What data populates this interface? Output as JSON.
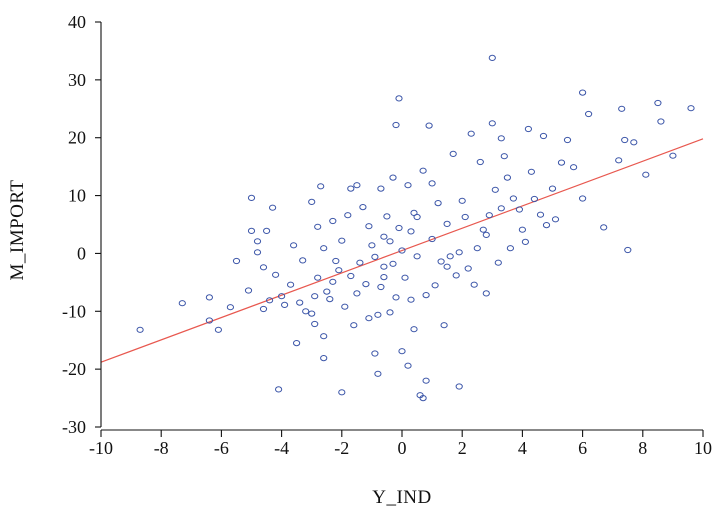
{
  "colors": {
    "points": "#3b55a8",
    "fit_line": "#e8584f",
    "axis": "#111111",
    "background": "#ffffff"
  },
  "chart_data": {
    "type": "scatter",
    "title": "",
    "xlabel": "Y_IND",
    "ylabel": "M_IMPORT",
    "xlim": [
      -10,
      10
    ],
    "ylim": [
      -30,
      40
    ],
    "xticks": [
      -10,
      -8,
      -6,
      -4,
      -2,
      0,
      2,
      4,
      6,
      8,
      10
    ],
    "yticks": [
      -30,
      -20,
      -10,
      0,
      10,
      20,
      30,
      40
    ],
    "xtick_labels": [
      "-10",
      "-8",
      "-6",
      "-4",
      "-2",
      "0",
      "2",
      "4",
      "6",
      "8",
      "10"
    ],
    "ytick_labels": [
      "-30",
      "-20",
      "-10",
      "0",
      "10",
      "20",
      "30",
      "40"
    ],
    "grid": false,
    "legend": "none",
    "fit_line": {
      "x": [
        -10,
        10
      ],
      "y": [
        -18.8,
        19.8
      ]
    },
    "points": [
      [
        -8.7,
        -13.2
      ],
      [
        -7.3,
        -8.6
      ],
      [
        -6.4,
        -7.6
      ],
      [
        -6.4,
        -11.6
      ],
      [
        -6.1,
        -13.2
      ],
      [
        -5.7,
        -9.3
      ],
      [
        -5.5,
        -1.3
      ],
      [
        -5.1,
        -6.4
      ],
      [
        -5.0,
        9.6
      ],
      [
        -5.0,
        3.9
      ],
      [
        -4.8,
        2.1
      ],
      [
        -4.8,
        0.2
      ],
      [
        -4.6,
        -2.4
      ],
      [
        -4.6,
        -9.6
      ],
      [
        -4.5,
        3.9
      ],
      [
        -4.4,
        -8.1
      ],
      [
        -4.3,
        7.9
      ],
      [
        -4.2,
        -3.7
      ],
      [
        -4.1,
        -23.5
      ],
      [
        -4.0,
        -7.4
      ],
      [
        -3.9,
        -8.9
      ],
      [
        -3.7,
        -5.4
      ],
      [
        -3.6,
        1.4
      ],
      [
        -3.5,
        -15.5
      ],
      [
        -3.4,
        -8.5
      ],
      [
        -3.3,
        -1.2
      ],
      [
        -3.2,
        -10.0
      ],
      [
        -3.0,
        8.9
      ],
      [
        -3.0,
        -10.4
      ],
      [
        -2.9,
        -12.2
      ],
      [
        -2.9,
        -7.4
      ],
      [
        -2.8,
        -4.2
      ],
      [
        -2.8,
        4.6
      ],
      [
        -2.7,
        11.6
      ],
      [
        -2.6,
        -14.3
      ],
      [
        -2.6,
        -18.1
      ],
      [
        -2.5,
        -6.6
      ],
      [
        -2.4,
        -7.9
      ],
      [
        -2.3,
        -4.9
      ],
      [
        -2.3,
        5.6
      ],
      [
        -2.2,
        -1.3
      ],
      [
        -2.1,
        -2.9
      ],
      [
        -2.0,
        -24.0
      ],
      [
        -2.0,
        2.2
      ],
      [
        -1.9,
        -9.2
      ],
      [
        -1.8,
        6.6
      ],
      [
        -1.7,
        -3.9
      ],
      [
        -1.7,
        11.2
      ],
      [
        -1.6,
        -12.4
      ],
      [
        -1.5,
        -6.9
      ],
      [
        -1.5,
        11.8
      ],
      [
        -1.4,
        -1.6
      ],
      [
        -1.3,
        8.0
      ],
      [
        -1.2,
        -5.3
      ],
      [
        -1.1,
        -11.2
      ],
      [
        -1.0,
        1.4
      ],
      [
        -0.9,
        -0.6
      ],
      [
        -0.9,
        -17.3
      ],
      [
        -0.8,
        -10.6
      ],
      [
        -0.8,
        -20.8
      ],
      [
        -0.7,
        11.2
      ],
      [
        -0.6,
        2.9
      ],
      [
        -0.6,
        -4.1
      ],
      [
        -0.6,
        -2.3
      ],
      [
        -0.5,
        6.4
      ],
      [
        -0.4,
        -10.2
      ],
      [
        -0.3,
        13.1
      ],
      [
        -0.3,
        -1.8
      ],
      [
        -0.2,
        -7.6
      ],
      [
        -0.2,
        22.2
      ],
      [
        -0.1,
        26.8
      ],
      [
        -0.1,
        4.4
      ],
      [
        0.0,
        -16.9
      ],
      [
        0.0,
        0.5
      ],
      [
        0.1,
        -4.2
      ],
      [
        0.2,
        -19.4
      ],
      [
        0.2,
        11.8
      ],
      [
        0.3,
        -8.0
      ],
      [
        0.3,
        3.8
      ],
      [
        0.4,
        -13.1
      ],
      [
        0.5,
        6.3
      ],
      [
        0.5,
        -0.5
      ],
      [
        0.6,
        -24.5
      ],
      [
        0.7,
        -25.0
      ],
      [
        0.7,
        14.3
      ],
      [
        0.8,
        -22.0
      ],
      [
        0.8,
        -7.2
      ],
      [
        0.9,
        22.1
      ],
      [
        1.0,
        2.5
      ],
      [
        1.1,
        -5.5
      ],
      [
        1.2,
        8.7
      ],
      [
        1.3,
        -1.4
      ],
      [
        1.4,
        -12.4
      ],
      [
        1.5,
        5.1
      ],
      [
        1.6,
        -0.5
      ],
      [
        1.7,
        17.2
      ],
      [
        1.8,
        -3.8
      ],
      [
        1.9,
        -23.0
      ],
      [
        1.9,
        0.2
      ],
      [
        2.0,
        9.1
      ],
      [
        2.1,
        6.3
      ],
      [
        2.2,
        -2.6
      ],
      [
        2.3,
        20.7
      ],
      [
        2.4,
        -5.4
      ],
      [
        2.5,
        0.9
      ],
      [
        2.6,
        15.8
      ],
      [
        2.7,
        4.1
      ],
      [
        2.8,
        -6.9
      ],
      [
        2.9,
        6.6
      ],
      [
        3.0,
        33.8
      ],
      [
        3.0,
        22.5
      ],
      [
        3.1,
        11.0
      ],
      [
        3.2,
        -1.6
      ],
      [
        3.3,
        19.9
      ],
      [
        3.4,
        16.8
      ],
      [
        3.5,
        13.1
      ],
      [
        3.6,
        0.9
      ],
      [
        3.7,
        9.5
      ],
      [
        3.9,
        7.6
      ],
      [
        4.0,
        4.1
      ],
      [
        4.1,
        2.0
      ],
      [
        4.2,
        21.5
      ],
      [
        4.3,
        14.1
      ],
      [
        4.4,
        9.4
      ],
      [
        4.6,
        6.7
      ],
      [
        4.7,
        20.3
      ],
      [
        4.8,
        4.9
      ],
      [
        5.0,
        11.2
      ],
      [
        5.1,
        5.9
      ],
      [
        5.3,
        15.7
      ],
      [
        5.5,
        19.6
      ],
      [
        5.7,
        14.9
      ],
      [
        6.0,
        27.8
      ],
      [
        6.0,
        9.5
      ],
      [
        6.2,
        24.1
      ],
      [
        6.7,
        4.5
      ],
      [
        7.2,
        16.1
      ],
      [
        7.3,
        25.0
      ],
      [
        7.4,
        19.6
      ],
      [
        7.5,
        0.6
      ],
      [
        7.7,
        19.2
      ],
      [
        8.1,
        13.6
      ],
      [
        8.5,
        26.0
      ],
      [
        8.6,
        22.8
      ],
      [
        9.0,
        16.9
      ],
      [
        9.6,
        25.1
      ],
      [
        -0.4,
        2.1
      ],
      [
        0.4,
        7.0
      ],
      [
        1.5,
        -2.3
      ],
      [
        2.8,
        3.2
      ],
      [
        -1.1,
        4.7
      ],
      [
        -2.6,
        0.9
      ],
      [
        1.0,
        12.1
      ],
      [
        3.3,
        7.8
      ],
      [
        -0.7,
        -5.8
      ]
    ]
  }
}
